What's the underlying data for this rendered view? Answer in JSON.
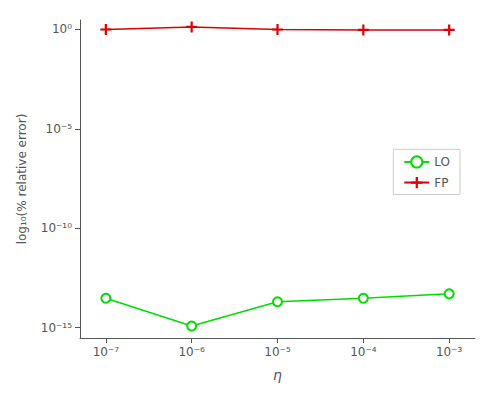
{
  "chart_data": {
    "type": "line",
    "x_label": "η",
    "y_label": "log₁₀(% relative error)",
    "x": [
      1e-07,
      1e-06,
      1e-05,
      0.0001,
      0.001
    ],
    "series": [
      {
        "name": "LO",
        "color": "#00dd00",
        "marker": "circle",
        "values": [
          3e-14,
          1.2e-15,
          2e-14,
          3e-14,
          5e-14
        ]
      },
      {
        "name": "FP",
        "color": "#dd0000",
        "marker": "plus",
        "values": [
          1.0,
          1.35,
          1.0,
          0.95,
          0.95
        ]
      }
    ],
    "log": true,
    "xlim": [
      5e-08,
      0.002
    ],
    "xticks": [
      {
        "value": 1e-07,
        "label": "10⁻⁷"
      },
      {
        "value": 1e-06,
        "label": "10⁻⁶"
      },
      {
        "value": 1e-05,
        "label": "10⁻⁵"
      },
      {
        "value": 0.0001,
        "label": "10⁻⁴"
      },
      {
        "value": 0.001,
        "label": "10⁻³"
      }
    ],
    "ylim": [
      3e-16,
      3
    ],
    "yticks": [
      {
        "value": 1e-15,
        "label": "10⁻¹⁵"
      },
      {
        "value": 1e-10,
        "label": "10⁻¹⁰"
      },
      {
        "value": 1e-05,
        "label": "10⁻⁵"
      },
      {
        "value": 1,
        "label": "10⁰"
      }
    ],
    "grid": false,
    "legend": "right"
  }
}
